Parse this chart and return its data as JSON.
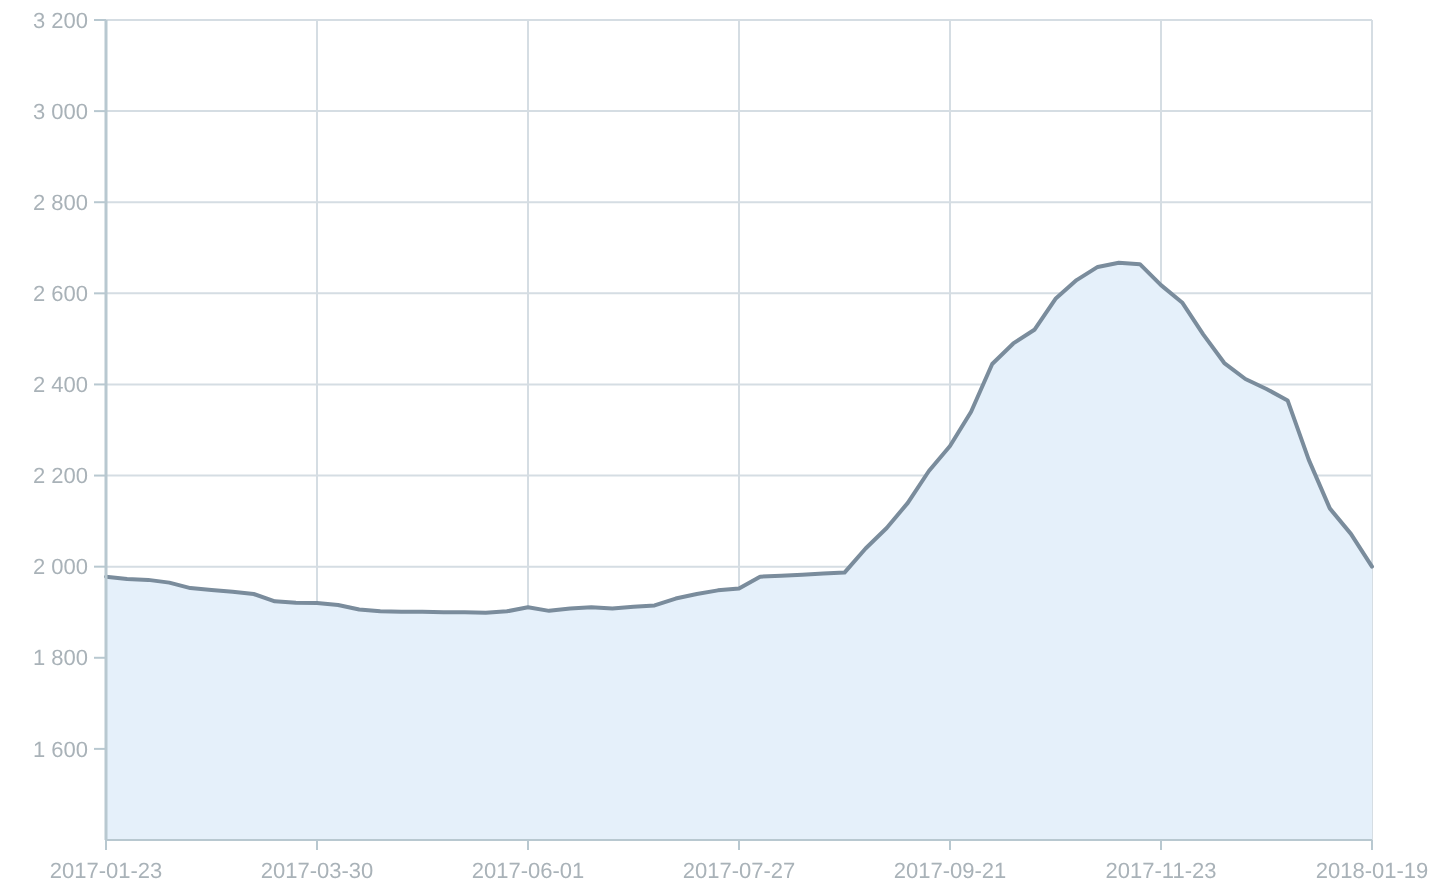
{
  "chart_data": {
    "type": "area",
    "categories": [
      "2017-01-23",
      null,
      null,
      null,
      null,
      null,
      null,
      null,
      null,
      null,
      "2017-03-30",
      null,
      null,
      null,
      null,
      null,
      null,
      null,
      null,
      null,
      "2017-06-01",
      null,
      null,
      null,
      null,
      null,
      null,
      null,
      null,
      null,
      "2017-07-27",
      null,
      null,
      null,
      null,
      null,
      null,
      null,
      null,
      null,
      "2017-09-21",
      null,
      null,
      null,
      null,
      null,
      null,
      null,
      null,
      null,
      "2017-11-23",
      null,
      null,
      null,
      null,
      null,
      null,
      null,
      null,
      null,
      "2018-01-19"
    ],
    "series": [
      {
        "color": "#7a8c9c",
        "values": [
          1978,
          1973,
          1971,
          1965,
          1953,
          1949,
          1945,
          1940,
          1924,
          1921,
          1920,
          1916,
          1906,
          1902,
          1901,
          1901,
          1900,
          1900,
          1899,
          1902,
          1911,
          1903,
          1908,
          1911,
          1908,
          1912,
          1915,
          1930,
          1940,
          1948,
          1952,
          1978,
          1980,
          1982,
          1985,
          1987,
          2040,
          2085,
          2140,
          2210,
          2265,
          2340,
          2445,
          2490,
          2520,
          2588,
          2629,
          2658,
          2667,
          2664,
          2618,
          2580,
          2510,
          2447,
          2412,
          2390,
          2365,
          2235,
          2128,
          2072,
          2000
        ]
      }
    ],
    "ylim": [
      1400,
      3200
    ],
    "yticks": [
      {
        "value": 1600,
        "label": "1 600"
      },
      {
        "value": 1800,
        "label": "1 800"
      },
      {
        "value": 2000,
        "label": "2 000"
      },
      {
        "value": 2200,
        "label": "2 200"
      },
      {
        "value": 2400,
        "label": "2 400"
      },
      {
        "value": 2600,
        "label": "2 600"
      },
      {
        "value": 2800,
        "label": "2 800"
      },
      {
        "value": 3000,
        "label": "3 000"
      },
      {
        "value": 3200,
        "label": "3 200"
      }
    ],
    "grid": true
  }
}
